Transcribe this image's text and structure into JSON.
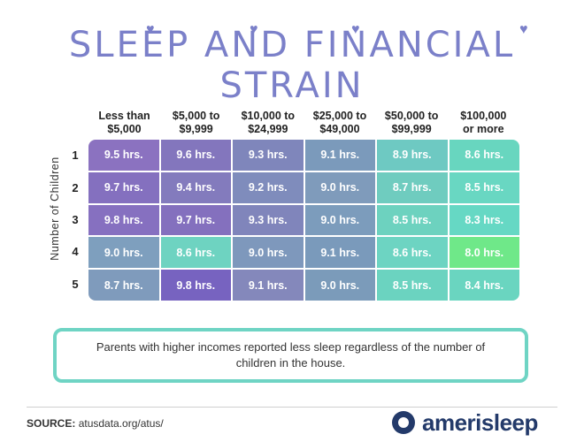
{
  "title": "Sleep and Financial Strain",
  "chart_data": {
    "type": "heatmap",
    "title": "Sleep and Financial Strain",
    "ylabel": "Number of Children",
    "columns": [
      "Less than\n$5,000",
      "$5,000 to\n$9,999",
      "$10,000 to\n$24,999",
      "$25,000 to\n$49,000",
      "$50,000 to\n$99,999",
      "$100,000\nor more"
    ],
    "rows": [
      "1",
      "2",
      "3",
      "4",
      "5"
    ],
    "unit": "hrs.",
    "values": [
      [
        9.5,
        9.6,
        9.3,
        9.1,
        8.9,
        8.6
      ],
      [
        9.7,
        9.4,
        9.2,
        9.0,
        8.7,
        8.5
      ],
      [
        9.8,
        9.7,
        9.3,
        9.0,
        8.5,
        8.3
      ],
      [
        9.0,
        8.6,
        9.0,
        9.1,
        8.6,
        8.0
      ],
      [
        8.7,
        9.8,
        9.1,
        9.0,
        8.5,
        8.4
      ]
    ],
    "labels": [
      [
        "9.5 hrs.",
        "9.6 hrs.",
        "9.3 hrs.",
        "9.1 hrs.",
        "8.9 hrs.",
        "8.6 hrs."
      ],
      [
        "9.7 hrs.",
        "9.4 hrs.",
        "9.2 hrs.",
        "9.0 hrs.",
        "8.7 hrs.",
        "8.5 hrs."
      ],
      [
        "9.8 hrs.",
        "9.7 hrs.",
        "9.3 hrs.",
        "9.0 hrs.",
        "8.5 hrs.",
        "8.3 hrs."
      ],
      [
        "9.0 hrs.",
        "8.6 hrs.",
        "9.0 hrs.",
        "9.1 hrs.",
        "8.6 hrs.",
        "8.0 hrs."
      ],
      [
        "8.7 hrs.",
        "9.8 hrs.",
        "9.1 hrs.",
        "9.0 hrs.",
        "8.5 hrs.",
        "8.4 hrs."
      ]
    ],
    "colors": [
      [
        "#8b72c0",
        "#8376bd",
        "#7f86bb",
        "#7b9abb",
        "#6ec9c2",
        "#68d6bf"
      ],
      [
        "#8470bf",
        "#837bbd",
        "#7f8cbc",
        "#7f9bbb",
        "#6fccbf",
        "#69d7c2"
      ],
      [
        "#8670c0",
        "#8470be",
        "#8085bb",
        "#7c9cbc",
        "#6dd2bf",
        "#66d8c4"
      ],
      [
        "#7e9fbe",
        "#6ed3c1",
        "#7e98bc",
        "#7a9abb",
        "#6dd4c2",
        "#6fe889"
      ],
      [
        "#7f9bbc",
        "#7763c0",
        "#8488bb",
        "#7b9bba",
        "#6bd3c0",
        "#6ad5c0"
      ]
    ]
  },
  "note": "Parents with higher incomes reported less sleep regardless of the number of children in the house.",
  "footer": {
    "source_label": "SOURCE:",
    "source_text": "atusdata.org/atus/",
    "brand": "amerisleep"
  },
  "colors": {
    "title": "#7b80c9",
    "note_border": "#6fd4c4",
    "brand": "#233a6a"
  }
}
